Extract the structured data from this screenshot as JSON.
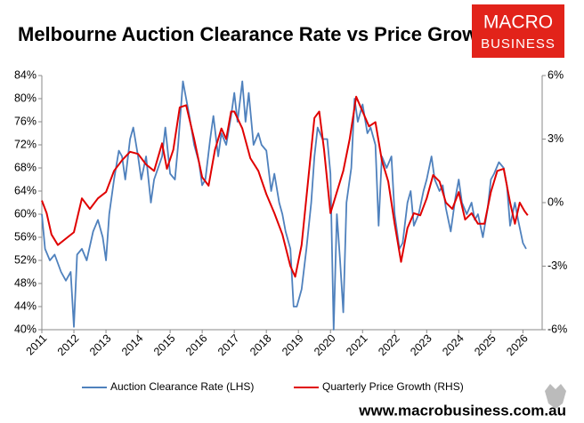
{
  "chart_data": {
    "type": "line",
    "title": "Melbourne Auction Clearance Rate vs Price Growth",
    "logo": [
      "MACRO",
      "BUSINESS"
    ],
    "footer": "www.macrobusiness.com.au",
    "xlim": [
      2011,
      2026.6
    ],
    "xticks": [
      2011,
      2012,
      2013,
      2014,
      2015,
      2016,
      2017,
      2018,
      2019,
      2020,
      2021,
      2022,
      2023,
      2024,
      2025,
      2026
    ],
    "ylim": [
      40,
      84
    ],
    "yticks": [
      {
        "value": 40,
        "label": "40%"
      },
      {
        "value": 44,
        "label": "44%"
      },
      {
        "value": 48,
        "label": "48%"
      },
      {
        "value": 52,
        "label": "52%"
      },
      {
        "value": 56,
        "label": "56%"
      },
      {
        "value": 60,
        "label": "60%"
      },
      {
        "value": 64,
        "label": "64%"
      },
      {
        "value": 68,
        "label": "68%"
      },
      {
        "value": 72,
        "label": "72%"
      },
      {
        "value": 76,
        "label": "76%"
      },
      {
        "value": 80,
        "label": "80%"
      },
      {
        "value": 84,
        "label": "84%"
      }
    ],
    "y2lim": [
      -6,
      6
    ],
    "y2ticks": [
      {
        "value": -6,
        "label": "-6%"
      },
      {
        "value": -3,
        "label": "-3%"
      },
      {
        "value": 0,
        "label": "0%"
      },
      {
        "value": 3,
        "label": "3%"
      },
      {
        "value": 6,
        "label": "6%"
      }
    ],
    "legend": "bottom",
    "series": [
      {
        "name": "Auction Clearance Rate (LHS)",
        "color": "#4f81bd",
        "axis": "y",
        "x": [
          2011.0,
          2011.1,
          2011.25,
          2011.4,
          2011.6,
          2011.75,
          2011.9,
          2012.0,
          2012.1,
          2012.25,
          2012.4,
          2012.6,
          2012.75,
          2012.9,
          2013.0,
          2013.1,
          2013.25,
          2013.4,
          2013.5,
          2013.6,
          2013.75,
          2013.85,
          2014.0,
          2014.1,
          2014.25,
          2014.4,
          2014.5,
          2014.75,
          2014.85,
          2015.0,
          2015.15,
          2015.25,
          2015.4,
          2015.5,
          2015.6,
          2015.75,
          2015.9,
          2016.0,
          2016.1,
          2016.25,
          2016.35,
          2016.5,
          2016.6,
          2016.75,
          2016.9,
          2017.0,
          2017.1,
          2017.25,
          2017.35,
          2017.45,
          2017.6,
          2017.75,
          2017.85,
          2018.0,
          2018.15,
          2018.25,
          2018.4,
          2018.5,
          2018.6,
          2018.75,
          2018.85,
          2018.95,
          2019.1,
          2019.25,
          2019.4,
          2019.5,
          2019.6,
          2019.75,
          2019.9,
          2020.0,
          2020.1,
          2020.2,
          2020.3,
          2020.4,
          2020.5,
          2020.65,
          2020.75,
          2020.85,
          2021.0,
          2021.15,
          2021.25,
          2021.4,
          2021.5,
          2021.6,
          2021.75,
          2021.9,
          2022.0,
          2022.15,
          2022.25,
          2022.4,
          2022.5,
          2022.6,
          2022.75,
          2022.9,
          2023.0,
          2023.15,
          2023.25,
          2023.4,
          2023.5,
          2023.6,
          2023.75,
          2023.9,
          2024.0,
          2024.1,
          2024.25,
          2024.4,
          2024.5,
          2024.6,
          2024.75,
          2024.9,
          2025.0,
          2025.1,
          2025.25,
          2025.4,
          2025.5,
          2025.6,
          2025.75,
          2025.85,
          2026.0,
          2026.1
        ],
        "values": [
          60,
          54,
          52,
          53,
          50,
          48.5,
          50,
          40.5,
          53,
          54,
          52,
          57,
          59,
          56,
          52,
          60,
          66,
          71,
          70,
          66,
          73,
          75,
          70,
          66,
          70,
          62,
          66,
          70,
          75,
          67,
          66,
          72,
          83,
          80,
          77,
          72,
          69,
          65,
          66,
          73,
          77,
          70,
          74,
          72,
          77,
          81,
          76,
          83,
          76,
          81,
          72,
          74,
          72,
          71,
          64,
          67,
          62,
          60,
          57,
          54,
          44,
          44,
          47,
          54,
          62,
          70,
          75,
          73,
          73,
          67,
          40,
          60,
          52,
          43,
          62,
          68,
          80,
          76,
          79,
          74,
          75,
          72,
          58,
          70,
          68,
          70,
          60,
          54,
          55,
          62,
          64,
          58,
          60,
          64,
          66,
          70,
          66,
          64,
          65,
          61,
          57,
          63,
          66,
          62,
          60,
          62,
          59,
          60,
          56,
          61,
          66,
          67,
          69,
          68,
          65,
          58,
          62,
          59,
          55,
          54
        ]
      },
      {
        "name": "Quarterly Price Growth (RHS)",
        "color": "#e00000",
        "axis": "y2",
        "x": [
          2011.0,
          2011.15,
          2011.3,
          2011.5,
          2011.75,
          2012.0,
          2012.25,
          2012.5,
          2012.75,
          2013.0,
          2013.25,
          2013.5,
          2013.75,
          2014.0,
          2014.25,
          2014.5,
          2014.75,
          2014.9,
          2015.1,
          2015.3,
          2015.5,
          2015.75,
          2016.0,
          2016.2,
          2016.4,
          2016.6,
          2016.75,
          2016.9,
          2017.0,
          2017.25,
          2017.5,
          2017.75,
          2018.0,
          2018.25,
          2018.5,
          2018.75,
          2018.9,
          2019.1,
          2019.3,
          2019.5,
          2019.65,
          2019.8,
          2020.0,
          2020.2,
          2020.4,
          2020.6,
          2020.8,
          2021.0,
          2021.2,
          2021.4,
          2021.6,
          2021.8,
          2022.0,
          2022.2,
          2022.4,
          2022.6,
          2022.8,
          2023.0,
          2023.2,
          2023.4,
          2023.6,
          2023.8,
          2024.0,
          2024.2,
          2024.4,
          2024.6,
          2024.8,
          2025.0,
          2025.2,
          2025.4,
          2025.6,
          2025.75,
          2025.9,
          2026.05,
          2026.15
        ],
        "values": [
          0.1,
          -0.5,
          -1.5,
          -2.0,
          -1.7,
          -1.4,
          0.2,
          -0.3,
          0.2,
          0.5,
          1.5,
          2.0,
          2.4,
          2.3,
          1.8,
          1.5,
          2.8,
          1.6,
          2.5,
          4.5,
          4.6,
          3.0,
          1.2,
          0.8,
          2.5,
          3.5,
          3.0,
          4.3,
          4.3,
          3.5,
          2.1,
          1.5,
          0.4,
          -0.5,
          -1.5,
          -3.0,
          -3.5,
          -2.0,
          1.0,
          4.0,
          4.3,
          2.5,
          -0.5,
          0.5,
          1.5,
          3.0,
          5.0,
          4.3,
          3.6,
          3.8,
          2.0,
          1.0,
          -1.0,
          -2.8,
          -1.2,
          -0.5,
          -0.6,
          0.2,
          1.3,
          1.0,
          0.0,
          -0.3,
          0.5,
          -0.8,
          -0.5,
          -1.0,
          -1.0,
          0.5,
          1.5,
          1.6,
          0.0,
          -1.0,
          0.0,
          -0.4,
          -0.6
        ]
      }
    ]
  }
}
